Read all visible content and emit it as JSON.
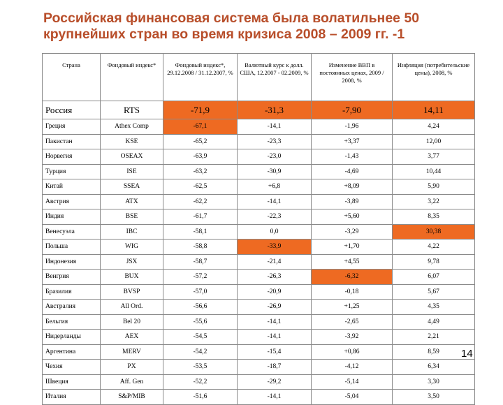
{
  "title": "Российская финансовая система была волатильнее 50 крупнейших стран во время кризиса 2008 – 2009 гг. -1",
  "headers": [
    "Страна",
    "Фондовый индекс*",
    "Фондовый индекс*, 29.12.2008 / 31.12.2007, %",
    "Валютный курс к долл. США, 12.2007 - 02.2009, %",
    "Изменение ВВП в постоянных ценах, 2009 / 2008, %",
    "Инфляция (потребительские цены), 2008, %"
  ],
  "rows": [
    {
      "country": "Россия",
      "index": "RTS",
      "stock": "-71,9",
      "fx": "-31,3",
      "gdp": "-7,90",
      "inflation": "14,11",
      "highlight": [
        "stock",
        "fx",
        "gdp",
        "inflation"
      ]
    },
    {
      "country": "Греция",
      "index": "Athex Comp",
      "stock": "-67,1",
      "fx": "-14,1",
      "gdp": "-1,96",
      "inflation": "4,24",
      "highlight": [
        "stock"
      ]
    },
    {
      "country": "Пакистан",
      "index": "KSE",
      "stock": "-65,2",
      "fx": "-23,3",
      "gdp": "+3,37",
      "inflation": "12,00",
      "highlight": []
    },
    {
      "country": "Норвегия",
      "index": "OSEAX",
      "stock": "-63,9",
      "fx": "-23,0",
      "gdp": "-1,43",
      "inflation": "3,77",
      "highlight": []
    },
    {
      "country": "Турция",
      "index": "ISE",
      "stock": "-63,2",
      "fx": "-30,9",
      "gdp": "-4,69",
      "inflation": "10,44",
      "highlight": []
    },
    {
      "country": "Китай",
      "index": "SSEA",
      "stock": "-62,5",
      "fx": "+6,8",
      "gdp": "+8,09",
      "inflation": "5,90",
      "highlight": []
    },
    {
      "country": "Австрия",
      "index": "ATX",
      "stock": "-62,2",
      "fx": "-14,1",
      "gdp": "-3,89",
      "inflation": "3,22",
      "highlight": []
    },
    {
      "country": "Индия",
      "index": "BSE",
      "stock": "-61,7",
      "fx": "-22,3",
      "gdp": "+5,60",
      "inflation": "8,35",
      "highlight": []
    },
    {
      "country": "Венесуэла",
      "index": "IBC",
      "stock": "-58,1",
      "fx": "0,0",
      "gdp": "-3,29",
      "inflation": "30,38",
      "highlight": [
        "inflation"
      ]
    },
    {
      "country": "Польша",
      "index": "WIG",
      "stock": "-58,8",
      "fx": "-33,9",
      "gdp": "+1,70",
      "inflation": "4,22",
      "highlight": [
        "fx"
      ]
    },
    {
      "country": "Индонезия",
      "index": "JSX",
      "stock": "-58,7",
      "fx": "-21,4",
      "gdp": "+4,55",
      "inflation": "9,78",
      "highlight": []
    },
    {
      "country": "Венгрия",
      "index": "BUX",
      "stock": "-57,2",
      "fx": "-26,3",
      "gdp": "-6,32",
      "inflation": "6,07",
      "highlight": [
        "gdp"
      ]
    },
    {
      "country": "Бразилия",
      "index": "BVSP",
      "stock": "-57,0",
      "fx": "-20,9",
      "gdp": "-0,18",
      "inflation": "5,67",
      "highlight": []
    },
    {
      "country": "Австралия",
      "index": "All Ord.",
      "stock": "-56,6",
      "fx": "-26,9",
      "gdp": "+1,25",
      "inflation": "4,35",
      "highlight": []
    },
    {
      "country": "Бельгия",
      "index": "Bel 20",
      "stock": "-55,6",
      "fx": "-14,1",
      "gdp": "-2,65",
      "inflation": "4,49",
      "highlight": []
    },
    {
      "country": "Нидерланды",
      "index": "AEX",
      "stock": "-54,5",
      "fx": "-14,1",
      "gdp": "-3,92",
      "inflation": "2,21",
      "highlight": []
    },
    {
      "country": "Аргентина",
      "index": "MERV",
      "stock": "-54,2",
      "fx": "-15,4",
      "gdp": "+0,86",
      "inflation": "8,59",
      "highlight": []
    },
    {
      "country": "Чехия",
      "index": "PX",
      "stock": "-53,5",
      "fx": "-18,7",
      "gdp": "-4,12",
      "inflation": "6,34",
      "highlight": []
    },
    {
      "country": "Швеция",
      "index": "Aff. Gen",
      "stock": "-52,2",
      "fx": "-29,2",
      "gdp": "-5,14",
      "inflation": "3,30",
      "highlight": []
    },
    {
      "country": "Италия",
      "index": "S&P/MIB",
      "stock": "-51,6",
      "fx": "-14,1",
      "gdp": "-5,04",
      "inflation": "3,50",
      "highlight": []
    }
  ],
  "page_number": "14",
  "colors": {
    "title": "#b84e2a",
    "highlight": "#ee6a22",
    "border": "#8a8a8a"
  }
}
